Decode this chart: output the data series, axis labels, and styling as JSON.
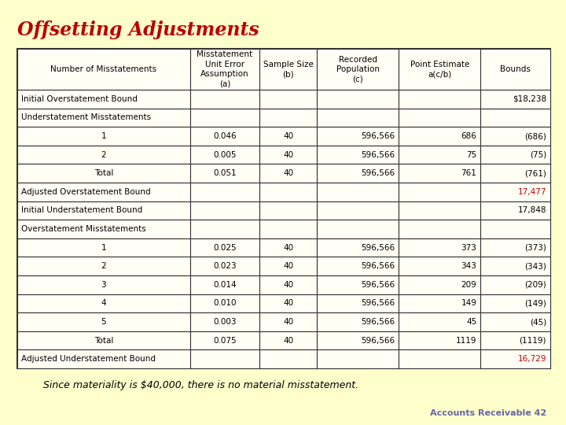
{
  "title": "Offsetting Adjustments",
  "title_color": "#bb0000",
  "background_color": "#ffffcc",
  "table_line_color": "#333333",
  "font_size": 7.5,
  "footer_text": "Since materiality is $40,000, there is no material misstatement.",
  "footer_right": "Accounts Receivable 42",
  "footer_right_color": "#6666aa",
  "col_headers": [
    "Number of Misstatements",
    "Misstatement\nUnit Error\nAssumption\n(a)",
    "Sample Size\n(b)",
    "Recorded\nPopulation\n(c)",
    "Point Estimate\na(c/b)",
    "Bounds"
  ],
  "rows": [
    {
      "label": "Initial Overstatement Bound",
      "type": "section_value",
      "indent": true,
      "values": [
        "",
        "",
        "",
        "",
        "$18,238"
      ],
      "bounds_color": "#000000"
    },
    {
      "label": "Understatement Misstatements",
      "type": "section_header",
      "indent": false,
      "values": [
        "",
        "",
        "",
        "",
        ""
      ],
      "bounds_color": "#000000"
    },
    {
      "label": "1",
      "type": "data",
      "indent": false,
      "values": [
        "0.046",
        "40",
        "596,566",
        "686",
        "(686)"
      ],
      "bounds_color": "#000000"
    },
    {
      "label": "2",
      "type": "data",
      "indent": false,
      "values": [
        "0.005",
        "40",
        "596,566",
        "75",
        "(75)"
      ],
      "bounds_color": "#000000"
    },
    {
      "label": "Total",
      "type": "data",
      "indent": false,
      "values": [
        "0.051",
        "40",
        "596,566",
        "761",
        "(761)"
      ],
      "bounds_color": "#000000"
    },
    {
      "label": "Adjusted Overstatement Bound",
      "type": "section_value_red",
      "indent": false,
      "values": [
        "",
        "",
        "",
        "",
        "17,477"
      ],
      "bounds_color": "#cc0000"
    },
    {
      "label": "Initial Understatement Bound",
      "type": "section_value",
      "indent": true,
      "values": [
        "",
        "",
        "",
        "",
        "17,848"
      ],
      "bounds_color": "#000000"
    },
    {
      "label": "Overstatement Misstatements",
      "type": "section_header",
      "indent": false,
      "values": [
        "",
        "",
        "",
        "",
        ""
      ],
      "bounds_color": "#000000"
    },
    {
      "label": "1",
      "type": "data",
      "indent": false,
      "values": [
        "0.025",
        "40",
        "596,566",
        "373",
        "(373)"
      ],
      "bounds_color": "#000000"
    },
    {
      "label": "2",
      "type": "data",
      "indent": false,
      "values": [
        "0.023",
        "40",
        "596,566",
        "343",
        "(343)"
      ],
      "bounds_color": "#000000"
    },
    {
      "label": "3",
      "type": "data",
      "indent": false,
      "values": [
        "0.014",
        "40",
        "596,566",
        "209",
        "(209)"
      ],
      "bounds_color": "#000000"
    },
    {
      "label": "4",
      "type": "data",
      "indent": false,
      "values": [
        "0.010",
        "40",
        "596,566",
        "149",
        "(149)"
      ],
      "bounds_color": "#000000"
    },
    {
      "label": "5",
      "type": "data",
      "indent": false,
      "values": [
        "0.003",
        "40",
        "596,566",
        "45",
        "(45)"
      ],
      "bounds_color": "#000000"
    },
    {
      "label": "Total",
      "type": "data",
      "indent": false,
      "values": [
        "0.075",
        "40",
        "596,566",
        "1119",
        "(1119)"
      ],
      "bounds_color": "#000000"
    },
    {
      "label": "Adjusted Understatement Bound",
      "type": "section_value_red",
      "indent": false,
      "values": [
        "",
        "",
        "",
        "",
        "16,729"
      ],
      "bounds_color": "#cc0000"
    }
  ]
}
